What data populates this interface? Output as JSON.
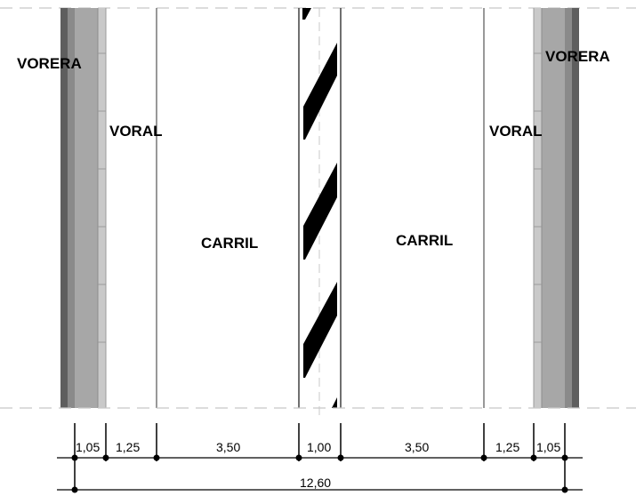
{
  "zones": {
    "left_sidewalk": "VORERA",
    "left_shoulder": "VORAL",
    "left_lane": "CARRIL",
    "right_lane": "CARRIL",
    "right_shoulder": "VORAL",
    "right_sidewalk": "VORERA"
  },
  "dimensions": {
    "segments": [
      "1,05",
      "1,25",
      "3,50",
      "1,00",
      "3,50",
      "1,25",
      "1,05"
    ],
    "total": "12,60"
  },
  "colors": {
    "sidewalk_outer": "#6e6e6e",
    "sidewalk_mid": "#9a9a9a",
    "sidewalk_inner": "#bdbdbd",
    "median_stripe": "#000000",
    "dashed_line": "#c8c8c8"
  }
}
